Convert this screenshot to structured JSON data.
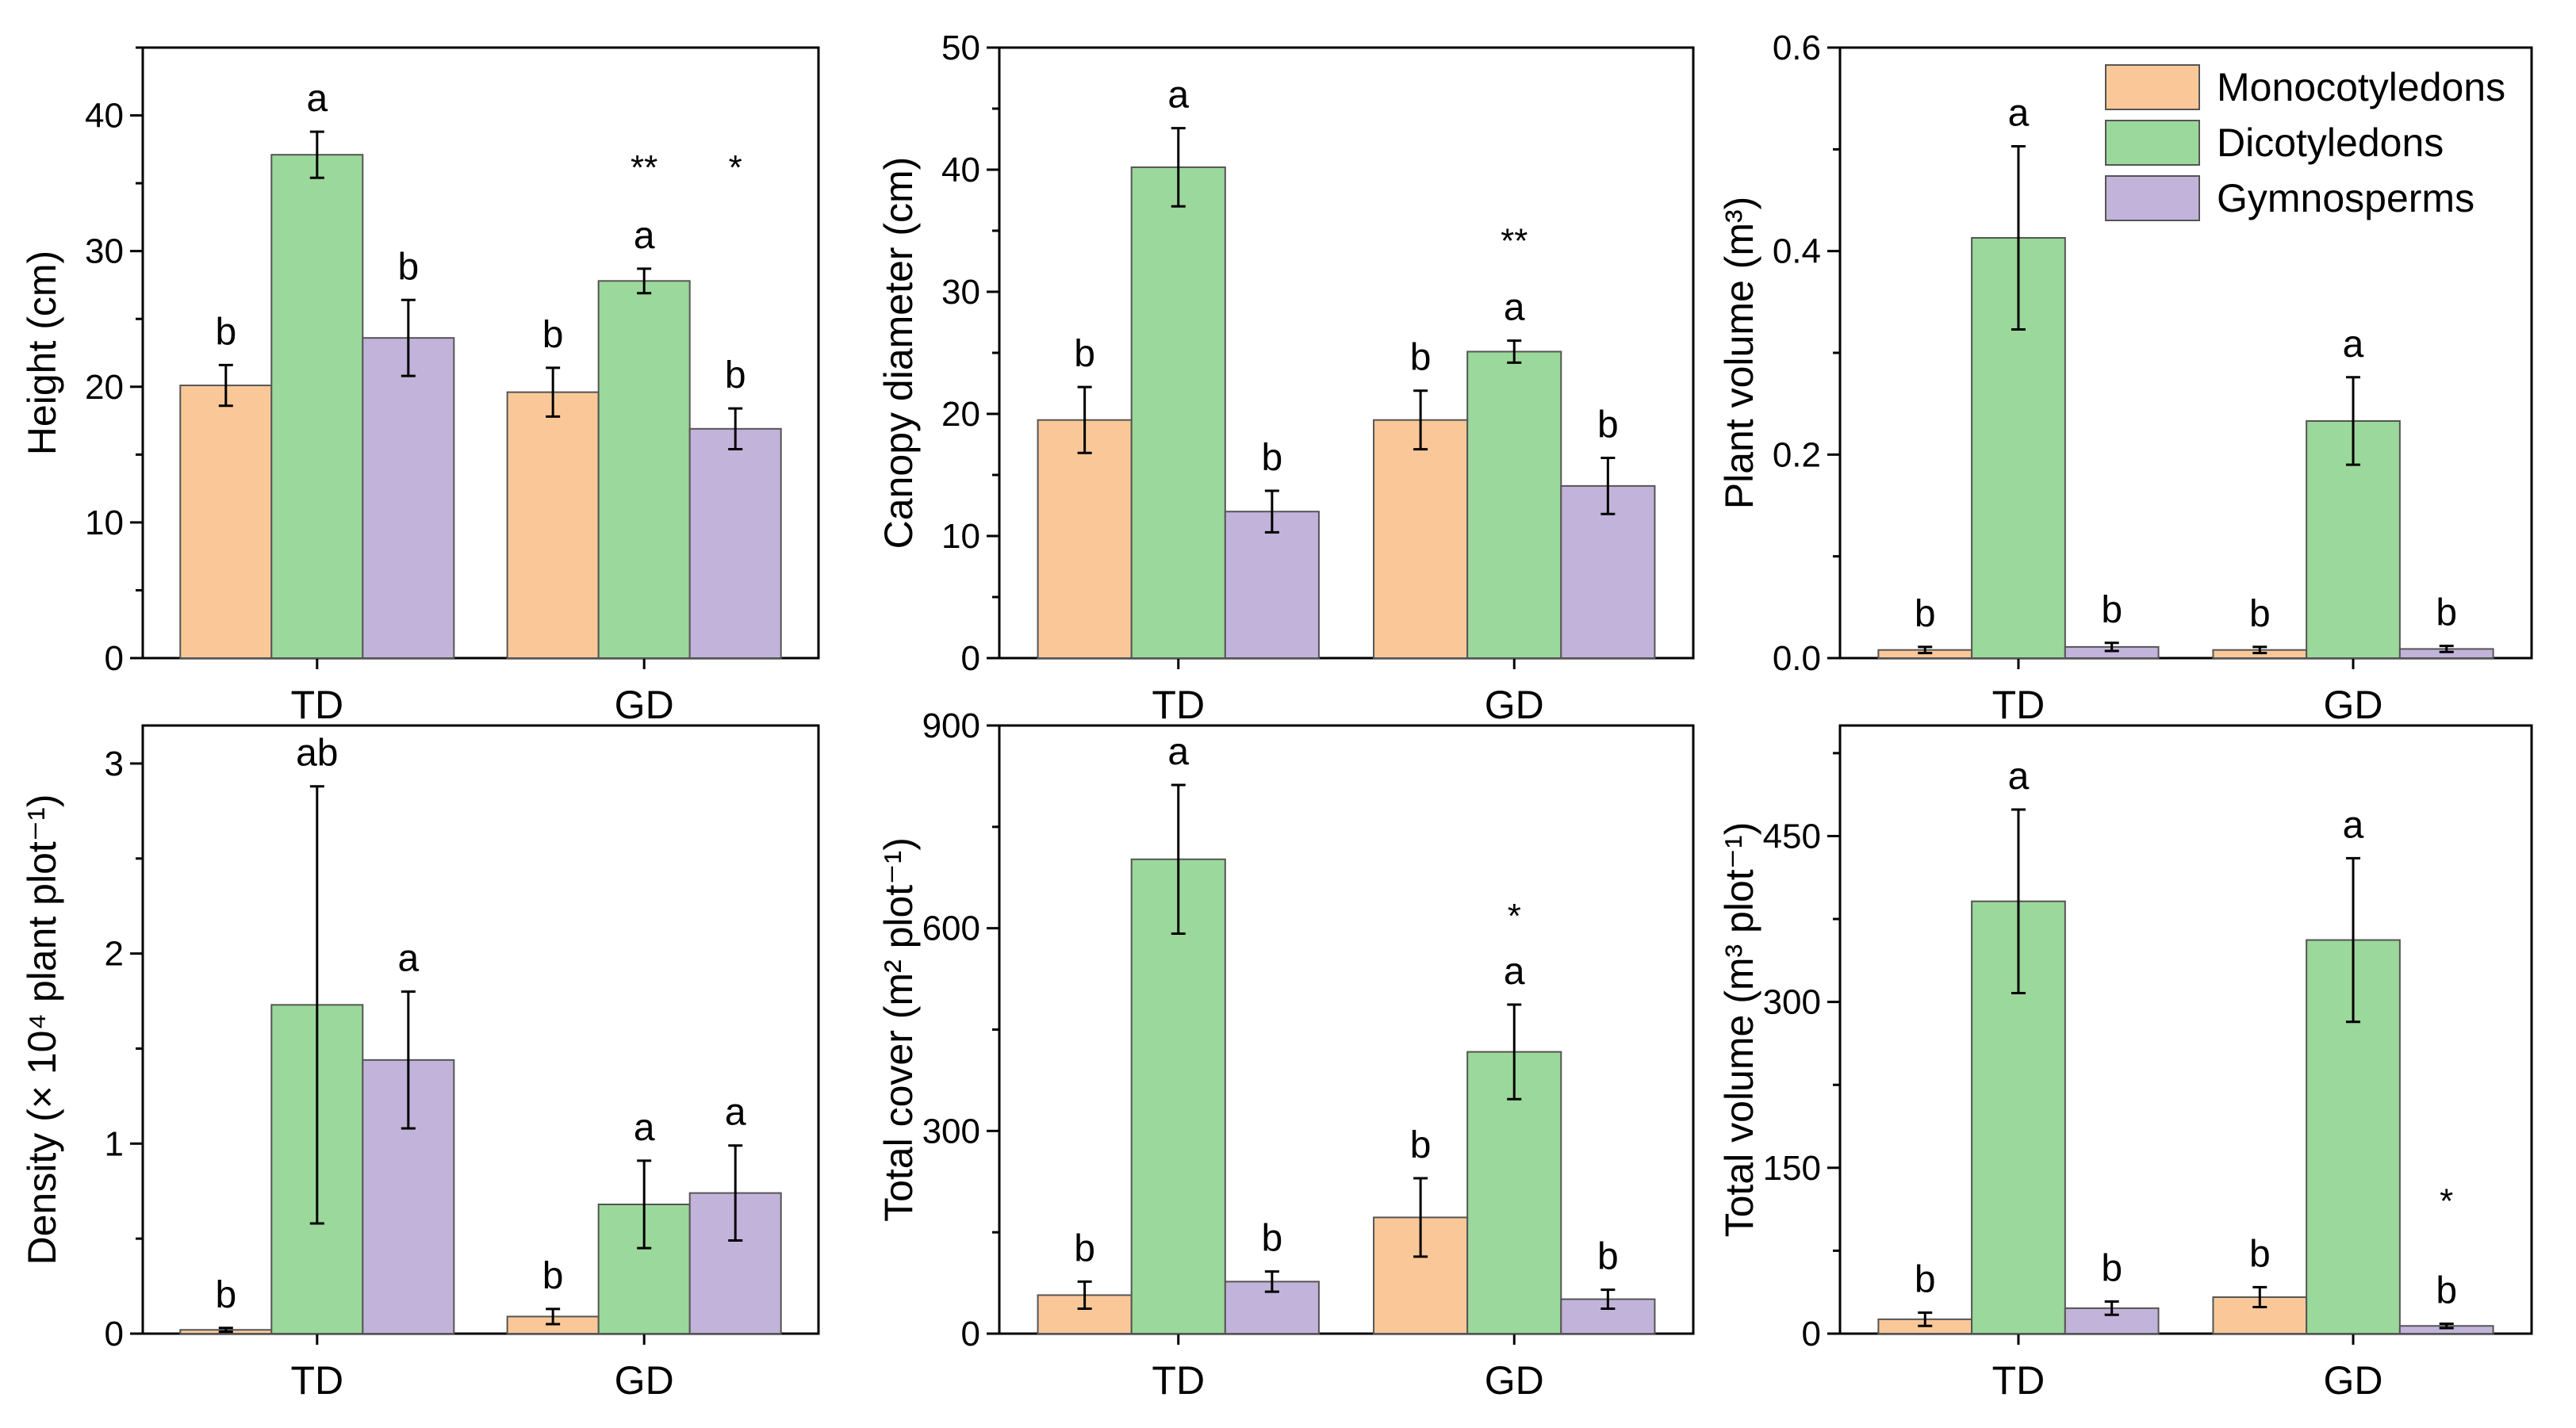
{
  "colors": {
    "Monocotyledons": "#FAC898",
    "Dicotyledons": "#9BD89B",
    "Gymnosperms": "#C2B3DA",
    "stroke": "#555555"
  },
  "legend": [
    "Monocotyledons",
    "Dicotyledons",
    "Gymnosperms"
  ],
  "chart_data": [
    {
      "type": "bar",
      "ylabel": "Height (cm)",
      "categories": [
        "TD",
        "GD"
      ],
      "ylim": [
        0,
        45
      ],
      "ticks": [
        0,
        10,
        20,
        30,
        40
      ],
      "series": [
        {
          "name": "Monocotyledons",
          "values": [
            20.1,
            19.6
          ],
          "errors": [
            1.5,
            1.8
          ],
          "letters": [
            "b",
            "b"
          ]
        },
        {
          "name": "Dicotyledons",
          "values": [
            37.1,
            27.8
          ],
          "errors": [
            1.7,
            0.9
          ],
          "letters": [
            "a",
            "a"
          ]
        },
        {
          "name": "Gymnosperms",
          "values": [
            23.6,
            16.9
          ],
          "errors": [
            2.8,
            1.5
          ],
          "letters": [
            "b",
            "b"
          ]
        }
      ],
      "stars": [
        {
          "category": "GD",
          "series": "Dicotyledons",
          "text": "**",
          "y": 36
        },
        {
          "category": "GD",
          "series": "Gymnosperms",
          "text": "*",
          "y": 36
        }
      ]
    },
    {
      "type": "bar",
      "ylabel": "Canopy diameter (cm)",
      "categories": [
        "TD",
        "GD"
      ],
      "ylim": [
        0,
        50
      ],
      "ticks": [
        0,
        10,
        20,
        30,
        40,
        50
      ],
      "series": [
        {
          "name": "Monocotyledons",
          "values": [
            19.5,
            19.5
          ],
          "errors": [
            2.7,
            2.4
          ],
          "letters": [
            "b",
            "b"
          ]
        },
        {
          "name": "Dicotyledons",
          "values": [
            40.2,
            25.1
          ],
          "errors": [
            3.2,
            0.9
          ],
          "letters": [
            "a",
            "a"
          ]
        },
        {
          "name": "Gymnosperms",
          "values": [
            12.0,
            14.1
          ],
          "errors": [
            1.7,
            2.3
          ],
          "letters": [
            "b",
            "b"
          ]
        }
      ],
      "stars": [
        {
          "category": "GD",
          "series": "Dicotyledons",
          "text": "**",
          "y": 34
        }
      ]
    },
    {
      "type": "bar",
      "ylabel": "Plant volume (m³)",
      "categories": [
        "TD",
        "GD"
      ],
      "ylim": [
        0,
        0.6
      ],
      "ticks": [
        0.0,
        0.2,
        0.4,
        0.6
      ],
      "tick_decimals": 1,
      "series": [
        {
          "name": "Monocotyledons",
          "values": [
            0.008,
            0.008
          ],
          "errors": [
            0.003,
            0.003
          ],
          "letters": [
            "b",
            "b"
          ]
        },
        {
          "name": "Dicotyledons",
          "values": [
            0.413,
            0.233
          ],
          "errors": [
            0.09,
            0.043
          ],
          "letters": [
            "a",
            "a"
          ]
        },
        {
          "name": "Gymnosperms",
          "values": [
            0.011,
            0.009
          ],
          "errors": [
            0.004,
            0.003
          ],
          "letters": [
            "b",
            "b"
          ]
        }
      ],
      "stars": [],
      "legend": "top-right"
    },
    {
      "type": "bar",
      "ylabel": "Density (× 10⁴ plant plot⁻¹)",
      "categories": [
        "TD",
        "GD"
      ],
      "ylim": [
        0,
        3.2
      ],
      "ticks": [
        0,
        1,
        2,
        3
      ],
      "series": [
        {
          "name": "Monocotyledons",
          "values": [
            0.02,
            0.09
          ],
          "errors": [
            0.01,
            0.04
          ],
          "letters": [
            "b",
            "b"
          ]
        },
        {
          "name": "Dicotyledons",
          "values": [
            1.73,
            0.68
          ],
          "errors": [
            1.15,
            0.23
          ],
          "letters": [
            "ab",
            "a"
          ]
        },
        {
          "name": "Gymnosperms",
          "values": [
            1.44,
            0.74
          ],
          "errors": [
            0.36,
            0.25
          ],
          "letters": [
            "a",
            "a"
          ]
        }
      ],
      "stars": []
    },
    {
      "type": "bar",
      "ylabel": "Total cover (m² plot⁻¹)",
      "categories": [
        "TD",
        "GD"
      ],
      "ylim": [
        0,
        900
      ],
      "ticks": [
        0,
        300,
        600,
        900
      ],
      "series": [
        {
          "name": "Monocotyledons",
          "values": [
            57,
            172
          ],
          "errors": [
            20,
            58
          ],
          "letters": [
            "b",
            "b"
          ]
        },
        {
          "name": "Dicotyledons",
          "values": [
            702,
            417
          ],
          "errors": [
            110,
            70
          ],
          "letters": [
            "a",
            "a"
          ]
        },
        {
          "name": "Gymnosperms",
          "values": [
            77,
            51
          ],
          "errors": [
            15,
            14
          ],
          "letters": [
            "b",
            "b"
          ]
        }
      ],
      "stars": [
        {
          "category": "GD",
          "series": "Dicotyledons",
          "text": "*",
          "y": 615
        }
      ]
    },
    {
      "type": "bar",
      "ylabel": "Total volume (m³ plot⁻¹)",
      "categories": [
        "TD",
        "GD"
      ],
      "ylim": [
        0,
        550
      ],
      "ticks": [
        0,
        150,
        300,
        450
      ],
      "series": [
        {
          "name": "Monocotyledons",
          "values": [
            13,
            33
          ],
          "errors": [
            6,
            9
          ],
          "letters": [
            "b",
            "b"
          ]
        },
        {
          "name": "Dicotyledons",
          "values": [
            391,
            356
          ],
          "errors": [
            83,
            74
          ],
          "letters": [
            "a",
            "a"
          ]
        },
        {
          "name": "Gymnosperms",
          "values": [
            23,
            7
          ],
          "errors": [
            6,
            2
          ],
          "letters": [
            "b",
            "b"
          ]
        }
      ],
      "stars": [
        {
          "category": "GD",
          "series": "Gymnosperms",
          "text": "*",
          "y": 118
        }
      ]
    }
  ]
}
